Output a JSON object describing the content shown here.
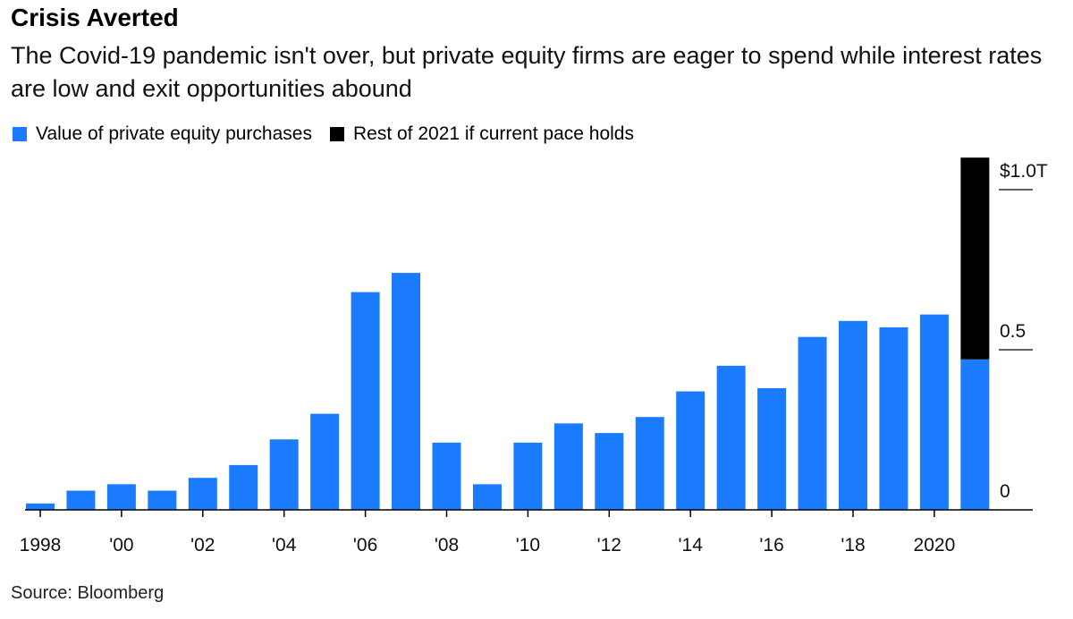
{
  "title": "Crisis Averted",
  "subtitle": "The Covid-19 pandemic isn't over, but private equity firms are eager to spend while interest rates are low and exit opportunities abound",
  "source": "Source: Bloomberg",
  "colors": {
    "primary": "#1a7bff",
    "projection": "#000000"
  },
  "chart_data": {
    "type": "bar",
    "stacked": true,
    "categories": [
      "1998",
      "1999",
      "2000",
      "2001",
      "2002",
      "2003",
      "2004",
      "2005",
      "2006",
      "2007",
      "2008",
      "2009",
      "2010",
      "2011",
      "2012",
      "2013",
      "2014",
      "2015",
      "2016",
      "2017",
      "2018",
      "2019",
      "2020",
      "2021"
    ],
    "x_tick_labels": [
      "1998",
      "'00",
      "'02",
      "'04",
      "'06",
      "'08",
      "'10",
      "'12",
      "'14",
      "'16",
      "'18",
      "2020"
    ],
    "series": [
      {
        "name": "Value of private equity purchases",
        "color": "#1a7bff",
        "values": [
          0.02,
          0.06,
          0.08,
          0.06,
          0.1,
          0.14,
          0.22,
          0.3,
          0.68,
          0.74,
          0.21,
          0.08,
          0.21,
          0.27,
          0.24,
          0.29,
          0.37,
          0.45,
          0.38,
          0.54,
          0.59,
          0.57,
          0.61,
          0.47
        ]
      },
      {
        "name": "Rest of 2021 if current pace holds",
        "color": "#000000",
        "values": [
          0,
          0,
          0,
          0,
          0,
          0,
          0,
          0,
          0,
          0,
          0,
          0,
          0,
          0,
          0,
          0,
          0,
          0,
          0,
          0,
          0,
          0,
          0,
          0.63
        ]
      }
    ],
    "y_ticks": [
      {
        "value": 0,
        "label": "0"
      },
      {
        "value": 0.5,
        "label": "0.5"
      },
      {
        "value": 1.0,
        "label": "$1.0T"
      }
    ],
    "ylim": [
      0,
      1.1
    ],
    "grid": false,
    "legend_position": "top-left"
  }
}
